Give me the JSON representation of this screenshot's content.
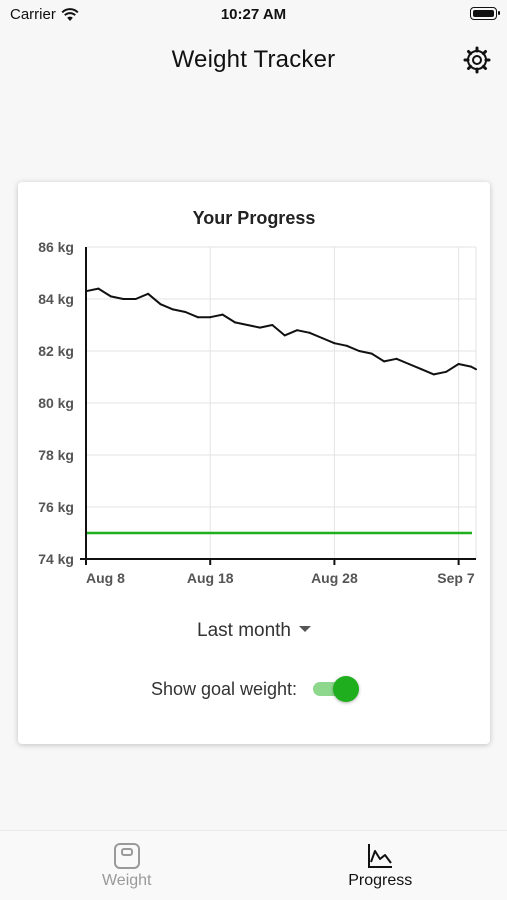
{
  "status_bar": {
    "carrier": "Carrier",
    "time": "10:27 AM"
  },
  "header": {
    "title": "Weight Tracker",
    "settings_icon": "gear-icon"
  },
  "card": {
    "title": "Your Progress",
    "range_select": {
      "value": "Last month"
    },
    "goal_toggle": {
      "label": "Show goal weight:",
      "on": true
    }
  },
  "colors": {
    "line": "#111111",
    "goal": "#1eae1e",
    "grid": "#e3e3e3",
    "axis": "#111111"
  },
  "chart_data": {
    "type": "line",
    "title": "Your Progress",
    "xlabel": "",
    "ylabel": "",
    "y_unit": "kg",
    "ylim": [
      74,
      86
    ],
    "y_ticks": [
      74,
      76,
      78,
      80,
      82,
      84,
      86
    ],
    "y_tick_labels": [
      "74 kg",
      "76 kg",
      "78 kg",
      "80 kg",
      "82 kg",
      "84 kg",
      "86 kg"
    ],
    "x_ticks": [
      "Aug 8",
      "Aug 18",
      "Aug 28",
      "Sep 7"
    ],
    "x_tick_days": [
      8,
      18,
      28,
      38
    ],
    "xlim": [
      8,
      39.4
    ],
    "grid": true,
    "series": [
      {
        "x": [
          8,
          9,
          10,
          11,
          12,
          13,
          14,
          15,
          16,
          17,
          18,
          19,
          20,
          21,
          22,
          23,
          24,
          25,
          26,
          27,
          28,
          29,
          30,
          31,
          32,
          33,
          34,
          35,
          36,
          37,
          38,
          39,
          39.4
        ],
        "values": [
          84.3,
          84.4,
          84.1,
          84.0,
          84.0,
          84.2,
          83.8,
          83.6,
          83.5,
          83.3,
          83.3,
          83.4,
          83.1,
          83.0,
          82.9,
          83.0,
          82.6,
          82.8,
          82.7,
          82.5,
          82.3,
          82.2,
          82.0,
          81.9,
          81.6,
          81.7,
          81.5,
          81.3,
          81.1,
          81.2,
          81.5,
          81.4,
          81.3
        ]
      }
    ],
    "goal": {
      "value": 75
    }
  },
  "tabs": [
    {
      "label": "Weight",
      "icon": "scale-icon",
      "active": false
    },
    {
      "label": "Progress",
      "icon": "chart-icon",
      "active": true
    }
  ]
}
